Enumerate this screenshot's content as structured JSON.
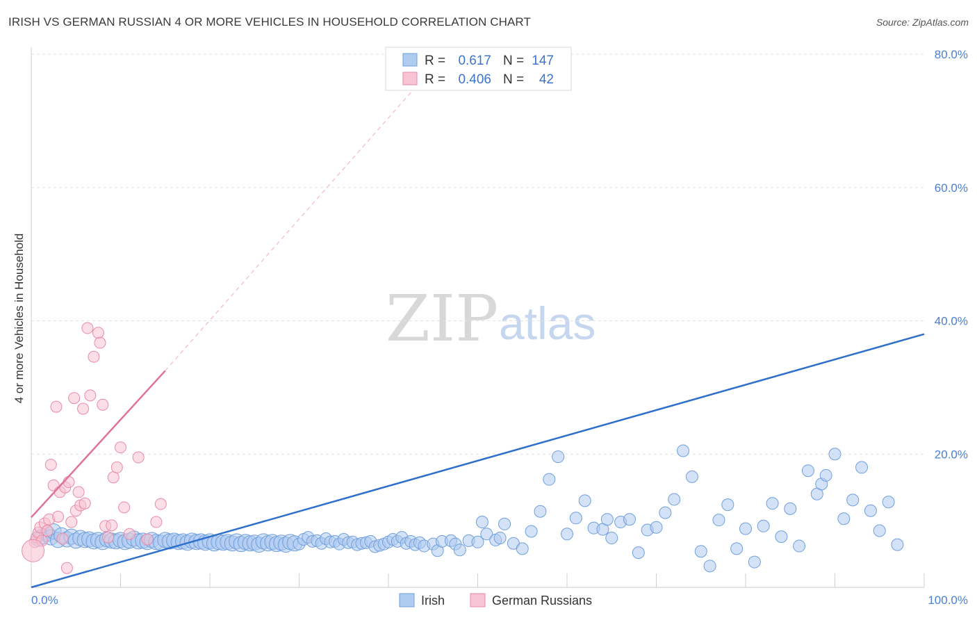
{
  "title": "IRISH VS GERMAN RUSSIAN 4 OR MORE VEHICLES IN HOUSEHOLD CORRELATION CHART",
  "source": "Source: ZipAtlas.com",
  "watermark": {
    "zip": "ZIP",
    "atlas": "atlas"
  },
  "colors": {
    "irish_fill": "#aecbf0",
    "irish_stroke": "#6f9fdc",
    "irish_line": "#2f6fcc",
    "gr_fill": "#f8c3d2",
    "gr_stroke": "#e98aa8",
    "gr_line": "#e0729a",
    "tick_text": "#4a7fd4",
    "grid": "#e2e2e2"
  },
  "legend": {
    "rows": [
      {
        "r_label": "R =",
        "r_value": "0.617",
        "n_label": "N =",
        "n_value": "147"
      },
      {
        "r_label": "R =",
        "r_value": "0.406",
        "n_label": "N =",
        "n_value": "42"
      }
    ]
  },
  "bottom_legend": [
    "Irish",
    "German Russians"
  ],
  "chart_data": {
    "type": "scatter",
    "title": "IRISH VS GERMAN RUSSIAN 4 OR MORE VEHICLES IN HOUSEHOLD CORRELATION CHART",
    "xlabel": "",
    "ylabel": "4 or more Vehicles in Household",
    "xlim": [
      0,
      100
    ],
    "ylim": [
      0,
      80
    ],
    "x_tick_labels": [
      "0.0%",
      "100.0%"
    ],
    "y_tick_labels": [
      "20.0%",
      "40.0%",
      "60.0%",
      "80.0%"
    ],
    "y_ticks": [
      20,
      40,
      60,
      80
    ],
    "x_grid_ticks": [
      0,
      10,
      20,
      30,
      40,
      50,
      60,
      70,
      80,
      90,
      100
    ],
    "grid": true,
    "legend_position": "top-center",
    "series": [
      {
        "name": "Irish",
        "r": 0.617,
        "n": 147,
        "trend": {
          "x": [
            0,
            100
          ],
          "y": [
            0,
            38.0
          ]
        },
        "points": [
          [
            0.8,
            7.3
          ],
          [
            1.2,
            7.6
          ],
          [
            1.8,
            8.0
          ],
          [
            2.2,
            7.5
          ],
          [
            2.5,
            8.4
          ],
          [
            3.0,
            7.1
          ],
          [
            3.4,
            7.8
          ],
          [
            4.0,
            7.2
          ],
          [
            4.5,
            7.6
          ],
          [
            5.0,
            7.0
          ],
          [
            5.5,
            7.4
          ],
          [
            6.0,
            7.1
          ],
          [
            6.5,
            7.2
          ],
          [
            7.0,
            6.9
          ],
          [
            7.5,
            7.1
          ],
          [
            8.0,
            6.8
          ],
          [
            8.5,
            7.2
          ],
          [
            9.0,
            7.0
          ],
          [
            9.5,
            6.9
          ],
          [
            10.0,
            7.1
          ],
          [
            10.5,
            6.8
          ],
          [
            11.0,
            7.0
          ],
          [
            11.5,
            7.3
          ],
          [
            12.0,
            6.9
          ],
          [
            12.5,
            7.0
          ],
          [
            13.0,
            6.8
          ],
          [
            13.5,
            7.1
          ],
          [
            14.0,
            6.8
          ],
          [
            14.5,
            6.7
          ],
          [
            15.0,
            7.1
          ],
          [
            15.5,
            6.9
          ],
          [
            16.0,
            7.0
          ],
          [
            16.5,
            6.8
          ],
          [
            17.0,
            6.9
          ],
          [
            17.5,
            6.7
          ],
          [
            18.0,
            7.0
          ],
          [
            18.5,
            6.8
          ],
          [
            19.0,
            6.9
          ],
          [
            19.5,
            6.7
          ],
          [
            20.0,
            6.9
          ],
          [
            20.5,
            6.6
          ],
          [
            21.0,
            6.8
          ],
          [
            21.5,
            6.7
          ],
          [
            22.0,
            6.8
          ],
          [
            22.5,
            6.6
          ],
          [
            23.0,
            6.9
          ],
          [
            23.5,
            6.5
          ],
          [
            24.0,
            6.8
          ],
          [
            24.5,
            6.6
          ],
          [
            25.0,
            6.7
          ],
          [
            25.5,
            6.4
          ],
          [
            26.0,
            6.9
          ],
          [
            26.5,
            6.6
          ],
          [
            27.0,
            6.8
          ],
          [
            27.5,
            6.5
          ],
          [
            28.0,
            6.7
          ],
          [
            28.5,
            6.4
          ],
          [
            29.0,
            6.8
          ],
          [
            29.5,
            6.6
          ],
          [
            30.0,
            6.5
          ],
          [
            30.5,
            7.2
          ],
          [
            31.0,
            7.5
          ],
          [
            31.5,
            6.9
          ],
          [
            32.0,
            7.0
          ],
          [
            32.5,
            6.6
          ],
          [
            33.0,
            7.3
          ],
          [
            33.5,
            6.8
          ],
          [
            34.0,
            6.9
          ],
          [
            34.5,
            6.5
          ],
          [
            35.0,
            7.2
          ],
          [
            35.5,
            6.7
          ],
          [
            36.0,
            6.8
          ],
          [
            36.5,
            6.4
          ],
          [
            37.0,
            6.6
          ],
          [
            37.5,
            6.7
          ],
          [
            38.0,
            6.9
          ],
          [
            38.5,
            6.1
          ],
          [
            39.0,
            6.3
          ],
          [
            39.5,
            6.5
          ],
          [
            40.0,
            6.8
          ],
          [
            40.5,
            7.2
          ],
          [
            41.0,
            6.9
          ],
          [
            41.5,
            7.5
          ],
          [
            42.0,
            6.6
          ],
          [
            42.5,
            6.9
          ],
          [
            43.0,
            6.4
          ],
          [
            43.5,
            6.7
          ],
          [
            44.0,
            6.2
          ],
          [
            45.0,
            6.5
          ],
          [
            45.5,
            5.5
          ],
          [
            46.0,
            6.9
          ],
          [
            47.0,
            7.0
          ],
          [
            47.5,
            6.5
          ],
          [
            48.0,
            5.6
          ],
          [
            49.0,
            7.0
          ],
          [
            50.0,
            6.8
          ],
          [
            50.5,
            9.8
          ],
          [
            51.0,
            8.0
          ],
          [
            52.0,
            7.1
          ],
          [
            52.5,
            7.4
          ],
          [
            53.0,
            9.5
          ],
          [
            54.0,
            6.6
          ],
          [
            55.0,
            5.8
          ],
          [
            56.0,
            8.4
          ],
          [
            57.0,
            11.4
          ],
          [
            58.0,
            16.2
          ],
          [
            59.0,
            19.6
          ],
          [
            60.0,
            8.0
          ],
          [
            61.0,
            10.4
          ],
          [
            62.0,
            13.0
          ],
          [
            63.0,
            8.9
          ],
          [
            64.0,
            8.7
          ],
          [
            64.5,
            10.2
          ],
          [
            65.0,
            7.4
          ],
          [
            66.0,
            9.8
          ],
          [
            67.0,
            10.2
          ],
          [
            68.0,
            5.2
          ],
          [
            69.0,
            8.6
          ],
          [
            70.0,
            9.0
          ],
          [
            71.0,
            11.2
          ],
          [
            72.0,
            13.2
          ],
          [
            73.0,
            20.5
          ],
          [
            74.0,
            16.6
          ],
          [
            75.0,
            5.4
          ],
          [
            76.0,
            3.2
          ],
          [
            77.0,
            10.1
          ],
          [
            78.0,
            12.4
          ],
          [
            79.0,
            5.8
          ],
          [
            80.0,
            8.8
          ],
          [
            81.0,
            3.8
          ],
          [
            82.0,
            9.2
          ],
          [
            83.0,
            12.6
          ],
          [
            84.0,
            7.6
          ],
          [
            85.0,
            11.8
          ],
          [
            86.0,
            6.2
          ],
          [
            87.0,
            17.5
          ],
          [
            88.0,
            14.0
          ],
          [
            88.5,
            15.5
          ],
          [
            89.0,
            16.8
          ],
          [
            90.0,
            20.0
          ],
          [
            91.0,
            10.3
          ],
          [
            92.0,
            13.1
          ],
          [
            93.0,
            18.0
          ],
          [
            94.0,
            11.5
          ],
          [
            95.0,
            8.5
          ],
          [
            96.0,
            12.8
          ],
          [
            97.0,
            6.4
          ]
        ]
      },
      {
        "name": "German Russians",
        "r": 0.406,
        "n": 42,
        "trend": {
          "x": [
            0,
            15
          ],
          "y": [
            10.5,
            32.5
          ],
          "dashed_to": {
            "x": 43,
            "y": 75
          }
        },
        "points": [
          [
            0.4,
            6.8
          ],
          [
            0.6,
            7.5
          ],
          [
            0.8,
            8.2
          ],
          [
            1.0,
            9.0
          ],
          [
            1.2,
            7.0
          ],
          [
            1.5,
            9.6
          ],
          [
            1.8,
            8.5
          ],
          [
            2.0,
            10.2
          ],
          [
            2.2,
            18.4
          ],
          [
            2.5,
            15.3
          ],
          [
            2.8,
            27.1
          ],
          [
            3.0,
            10.6
          ],
          [
            3.2,
            14.3
          ],
          [
            3.5,
            7.3
          ],
          [
            3.8,
            15.0
          ],
          [
            4.0,
            2.9
          ],
          [
            4.2,
            15.8
          ],
          [
            4.5,
            9.8
          ],
          [
            4.8,
            28.4
          ],
          [
            5.0,
            11.5
          ],
          [
            5.3,
            14.3
          ],
          [
            5.5,
            12.3
          ],
          [
            5.8,
            26.8
          ],
          [
            6.0,
            12.6
          ],
          [
            6.3,
            38.9
          ],
          [
            6.6,
            28.8
          ],
          [
            7.0,
            34.6
          ],
          [
            7.5,
            38.2
          ],
          [
            7.7,
            36.7
          ],
          [
            8.0,
            27.4
          ],
          [
            8.3,
            9.2
          ],
          [
            8.6,
            7.5
          ],
          [
            9.0,
            9.3
          ],
          [
            9.2,
            16.5
          ],
          [
            9.6,
            18.0
          ],
          [
            10.0,
            21.0
          ],
          [
            10.4,
            12.0
          ],
          [
            11.0,
            8.0
          ],
          [
            12.0,
            19.5
          ],
          [
            13.0,
            7.2
          ],
          [
            14.0,
            9.8
          ],
          [
            14.5,
            12.5
          ]
        ]
      }
    ]
  }
}
